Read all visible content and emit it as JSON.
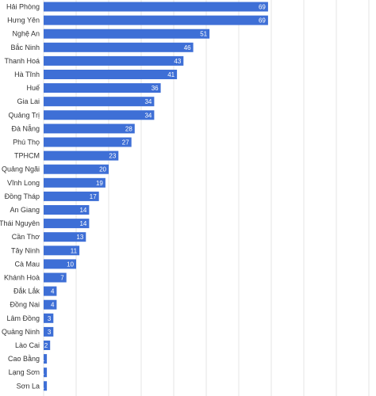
{
  "chart_data": {
    "type": "bar",
    "orientation": "horizontal",
    "categories": [
      "Hải Phòng",
      "Hưng Yên",
      "Nghệ An",
      "Bắc Ninh",
      "Thanh Hoá",
      "Hà Tĩnh",
      "Huế",
      "Gia Lai",
      "Quảng Trị",
      "Đà Nẵng",
      "Phú Thọ",
      "TPHCM",
      "Quảng Ngãi",
      "Vĩnh Long",
      "Đồng Tháp",
      "An Giang",
      "Thái Nguyên",
      "Cần Thơ",
      "Tây Ninh",
      "Cà Mau",
      "Khánh Hoà",
      "Đắk Lắk",
      "Đồng Nai",
      "Lâm Đồng",
      "Quảng Ninh",
      "Lào Cai",
      "Cao Bằng",
      "Lạng Sơn",
      "Sơn La"
    ],
    "values": [
      69,
      69,
      51,
      46,
      43,
      41,
      36,
      34,
      34,
      28,
      27,
      23,
      20,
      19,
      17,
      14,
      14,
      13,
      11,
      10,
      7,
      4,
      4,
      3,
      3,
      2,
      1,
      1,
      1
    ],
    "data_labels": [
      "69",
      "69",
      "51",
      "46",
      "43",
      "41",
      "36",
      "34",
      "34",
      "28",
      "27",
      "23",
      "20",
      "19",
      "17",
      "14",
      "14",
      "13",
      "11",
      "10",
      "7",
      "4",
      "4",
      "3",
      "3",
      "2",
      "1",
      "1",
      "1"
    ],
    "xlim": [
      0,
      100
    ],
    "grid": true,
    "legend": "none",
    "title": "",
    "xlabel": "",
    "ylabel": "",
    "colors": {
      "bar": "#3e6fd6",
      "grid": "#e6e6e6",
      "text": "#333333",
      "value_text": "#ffffff"
    }
  }
}
